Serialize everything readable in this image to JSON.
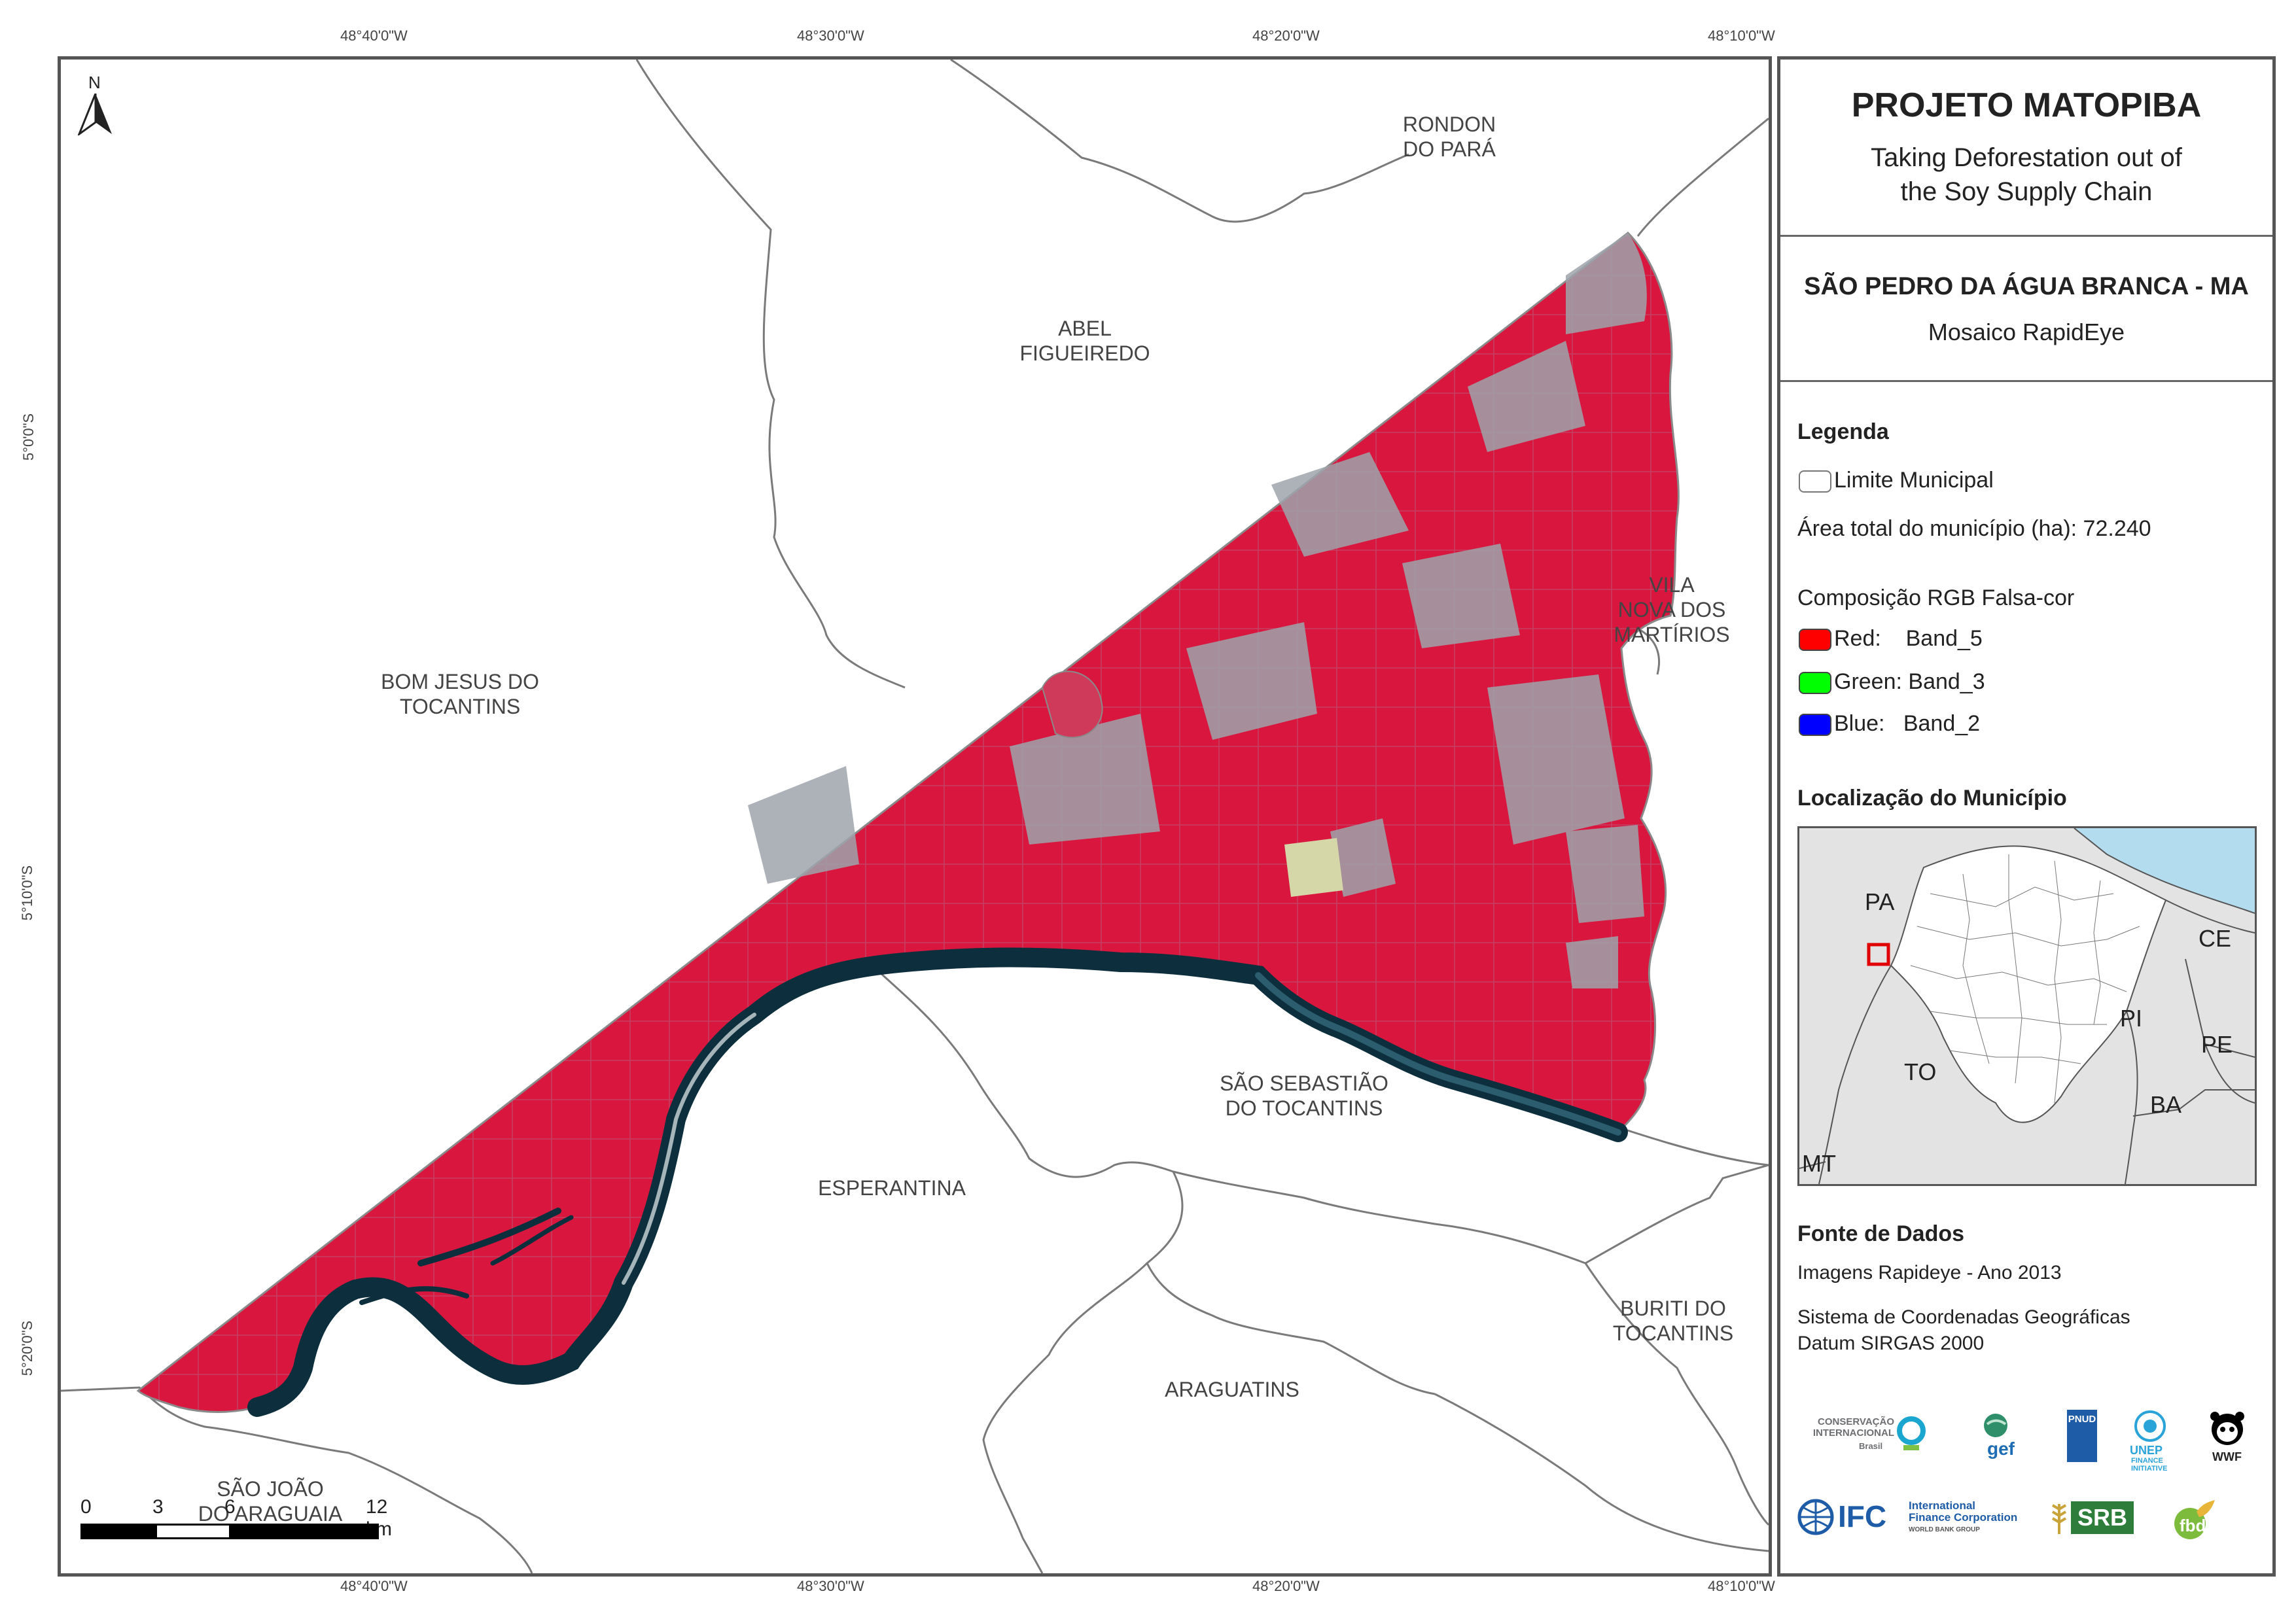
{
  "title": "PROJETO MATOPIBA",
  "subtitle": "Taking Deforestation out of\nthe Soy Supply Chain",
  "municipality": "SÃO PEDRO DA ÁGUA BRANCA - MA",
  "mosaic": "Mosaico RapidEye",
  "legend": {
    "heading": "Legenda",
    "boundary_label": "Limite Municipal",
    "area_label": "Área total do município (ha): 72.240",
    "composition_label": "Composição RGB Falsa-cor",
    "bands": [
      {
        "label": "Red:    Band_5",
        "color": "#ff0000"
      },
      {
        "label": "Green: Band_3",
        "color": "#00ff00"
      },
      {
        "label": "Blue:   Band_2",
        "color": "#0000ff"
      }
    ]
  },
  "location": {
    "heading": "Localização do Município",
    "states": [
      "PA",
      "CE",
      "PI",
      "PE",
      "TO",
      "BA",
      "MT"
    ]
  },
  "sources": {
    "heading": "Fonte de Dados",
    "images": "Imagens Rapideye - Ano 2013",
    "coord_system": "Sistema de Coordenadas Geográficas",
    "datum": "Datum SIRGAS 2000"
  },
  "coords": {
    "top": [
      "48°40'0\"W",
      "48°30'0\"W",
      "48°20'0\"W",
      "48°10'0\"W"
    ],
    "bottom": [
      "48°40'0\"W",
      "48°30'0\"W",
      "48°20'0\"W",
      "48°10'0\"W"
    ],
    "left": [
      "5°0'0\"S",
      "5°10'0\"S",
      "5°20'0\"S"
    ]
  },
  "places": {
    "rondon": "RONDON\nDO PARÁ",
    "abel": "ABEL\nFIGUEIREDO",
    "bom_jesus": "BOM JESUS DO\nTOCANTINS",
    "vila_nova": "VILA\nNOVA DOS\nMARTÍRIOS",
    "sao_sebastiao": "SÃO SEBASTIÃO\nDO TOCANTINS",
    "esperantina": "ESPERANTINA",
    "buriti": "BURITI DO\nTOCANTINS",
    "araguatins": "ARAGUATINS",
    "sao_joao": "SÃO JOÃO\nDO ARAGUAIA"
  },
  "north_label": "N",
  "scale": {
    "ticks": [
      "0",
      "3",
      "6",
      "12 km"
    ]
  },
  "logos": {
    "ci": "CONSERVAÇÃO\nINTERNACIONAL",
    "ci_sub": "Brasil",
    "gef": "gef",
    "undp": "PNUD",
    "unep": "UNEP",
    "unep_sub": "FINANCE\nINITIATIVE",
    "wwf": "WWF",
    "ifc": "IFC",
    "ifc_sub": "International\nFinance Corporation",
    "ifc_sub2": "WORLD BANK GROUP",
    "srb": "SRB",
    "fbds": "fbds"
  },
  "colors": {
    "vegetation": "#d8163e",
    "cleared": "#9aa3a9",
    "water": "#0d2f3d",
    "boundary": "#777777",
    "ocean": "#b4dcef",
    "inset_land": "#e3e3e3",
    "highlight": "#e00000"
  }
}
